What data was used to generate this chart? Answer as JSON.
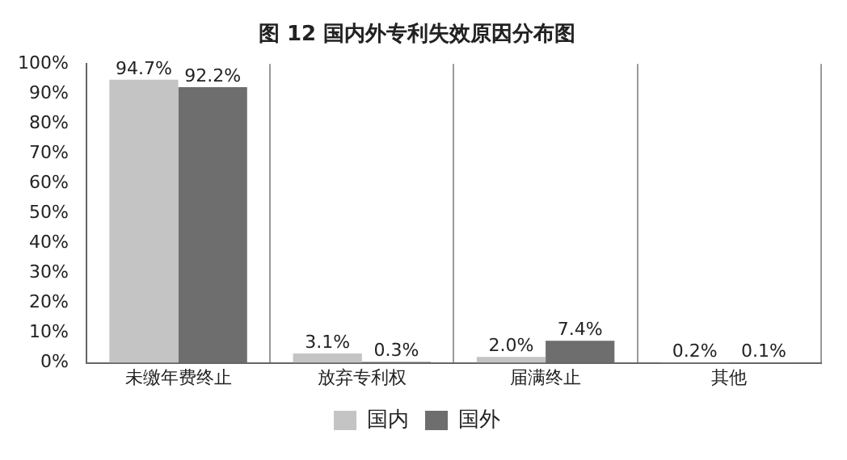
{
  "chart_data": {
    "type": "bar",
    "title": "图 12 国内外专利失效原因分布图",
    "categories": [
      "未缴年费终止",
      "放弃专利权",
      "届满终止",
      "其他"
    ],
    "series": [
      {
        "name": "国内",
        "color": "#c4c4c4",
        "values": [
          94.7,
          3.1,
          2.0,
          0.2
        ],
        "value_labels": [
          "94.7%",
          "3.1%",
          "2.0%",
          "0.2%"
        ]
      },
      {
        "name": "国外",
        "color": "#6e6e6e",
        "values": [
          92.2,
          0.3,
          7.4,
          0.1
        ],
        "value_labels": [
          "92.2%",
          "0.3%",
          "7.4%",
          "0.1%"
        ]
      }
    ],
    "ylim": [
      0,
      100
    ],
    "yticks": [
      {
        "value": 0,
        "label": "0%"
      },
      {
        "value": 10,
        "label": "10%"
      },
      {
        "value": 20,
        "label": "20%"
      },
      {
        "value": 30,
        "label": "30%"
      },
      {
        "value": 40,
        "label": "40%"
      },
      {
        "value": 50,
        "label": "50%"
      },
      {
        "value": 60,
        "label": "60%"
      },
      {
        "value": 70,
        "label": "70%"
      },
      {
        "value": 80,
        "label": "80%"
      },
      {
        "value": 90,
        "label": "90%"
      },
      {
        "value": 100,
        "label": "100%"
      }
    ],
    "grid": "x",
    "legend": "bottom"
  }
}
